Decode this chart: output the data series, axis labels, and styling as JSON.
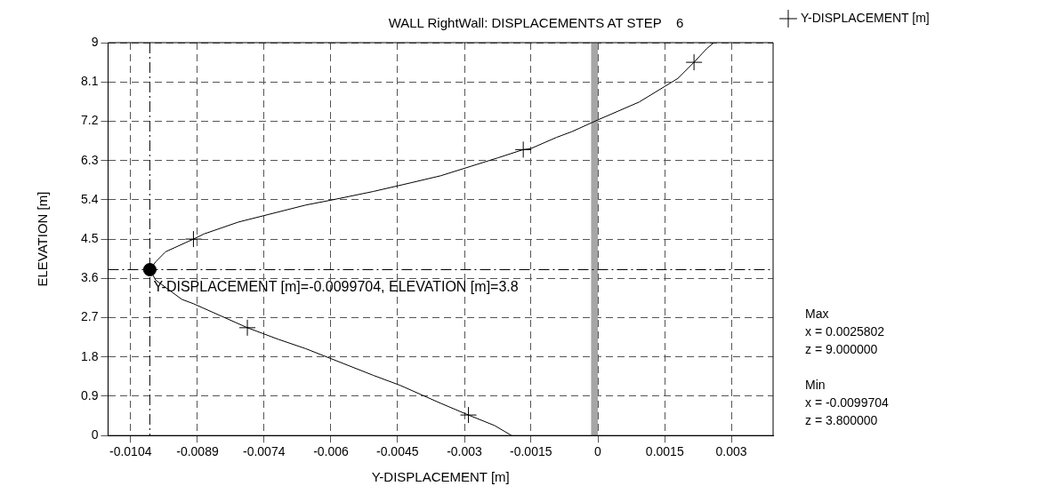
{
  "chart_data": {
    "type": "line",
    "title": "WALL RightWall: DISPLACEMENTS AT STEP    6",
    "xlabel": "Y-DISPLACEMENT [m]",
    "ylabel": "ELEVATION [m]",
    "xlim": [
      -0.0109,
      0.0039
    ],
    "ylim": [
      0,
      9
    ],
    "xticks": [
      {
        "value": -0.0104,
        "label": "-0.0104"
      },
      {
        "value": -0.00891,
        "label": "-0.0089"
      },
      {
        "value": -0.00743,
        "label": "-0.0074"
      },
      {
        "value": -0.00594,
        "label": "-0.006"
      },
      {
        "value": -0.00446,
        "label": "-0.0045"
      },
      {
        "value": -0.00297,
        "label": "-0.003"
      },
      {
        "value": -0.00149,
        "label": "-0.0015"
      },
      0,
      {
        "value": 0.00149,
        "label": "0.0015"
      },
      {
        "value": 0.00297,
        "label": "0.003"
      }
    ],
    "yticks": [
      0,
      0.9,
      1.8,
      2.7,
      3.6,
      4.5,
      5.4,
      6.3,
      7.2,
      8.1,
      9
    ],
    "grid": true,
    "legend": "top right",
    "line_style": "solid",
    "series": [
      {
        "color": "#000000",
        "marker": "none",
        "x": [
          0.00258,
          0.00242,
          0.00214,
          0.00178,
          0.00092,
          0,
          -0.00058,
          -0.00092,
          -0.0015,
          -0.00166,
          -0.00223,
          -0.0035,
          -0.00416,
          -0.005,
          -0.0059,
          -0.0065,
          -0.008,
          -0.00876,
          -0.009,
          -0.00962,
          -0.00984,
          -0.0099704,
          -0.00984,
          -0.00926,
          -0.009,
          -0.0078,
          -0.0071,
          -0.0065,
          -0.005,
          -0.0044,
          -0.0035,
          -0.00288,
          -0.0023,
          -0.00192
        ],
        "values": [
          9,
          8.86,
          8.55,
          8.18,
          7.64,
          7.23,
          6.96,
          6.83,
          6.57,
          6.55,
          6.36,
          5.95,
          5.79,
          5.59,
          5.4,
          5.28,
          4.89,
          4.62,
          4.5,
          4.21,
          3.98,
          3.8,
          3.56,
          3.12,
          3.02,
          2.47,
          2.2,
          1.99,
          1.38,
          1.15,
          0.74,
          0.47,
          0.23,
          0
        ]
      },
      {
        "type": "scatter",
        "name": "Y-DISPLACEMENT [m]",
        "color": "#000000",
        "marker": "cross",
        "x": [
          0.00214,
          -0.00166,
          -0.009,
          -0.0078,
          -0.00288
        ],
        "values": [
          8.55,
          6.55,
          4.5,
          2.47,
          0.47
        ]
      },
      {
        "type": "scatter",
        "color": "#000000",
        "marker": "circle",
        "x": [
          -0.0099704
        ],
        "values": [
          3.8
        ]
      }
    ],
    "ref_lines": [
      {
        "axis": "x",
        "value": -0.0099704,
        "color": "#000000",
        "line_style": "dashed"
      },
      {
        "axis": "y",
        "value": 3.8,
        "color": "#000000",
        "line_style": "dashed"
      }
    ],
    "bands": [
      {
        "axis": "x",
        "from": -0.00015,
        "to": 0,
        "color": "#a6a6a6"
      }
    ],
    "annotations": [
      {
        "text": "Y-DISPLACEMENT [m]=-0.0099704, ELEVATION [m]=3.8",
        "x": -0.0099704,
        "y": 3.8
      },
      "Max",
      "x = 0.0025802",
      "z = 9.000000",
      "Min",
      "x = -0.0099704",
      "z = 3.800000"
    ]
  }
}
